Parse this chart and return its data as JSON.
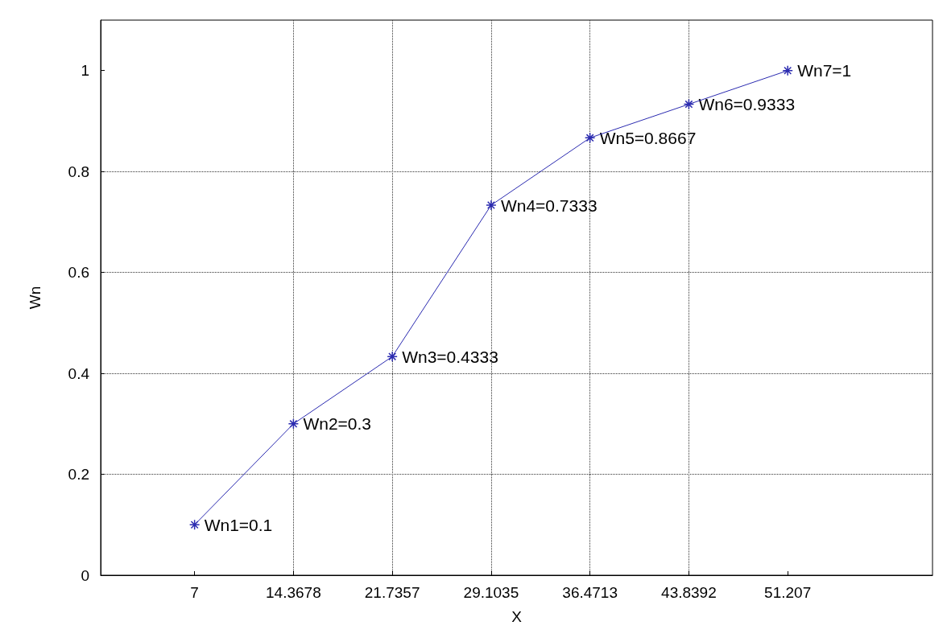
{
  "chart_data": {
    "type": "line",
    "xlabel": "X",
    "ylabel": "Wn",
    "x": [
      7,
      14.3678,
      21.7357,
      29.1035,
      36.4713,
      43.8392,
      51.207
    ],
    "series": [
      {
        "color": "#2b2bb0",
        "values": [
          0.1,
          0.3,
          0.4333,
          0.7333,
          0.8667,
          0.9333,
          1
        ]
      }
    ],
    "xlim": [
      0,
      62
    ],
    "xticks": [
      7,
      14.3678,
      21.7357,
      29.1035,
      36.4713,
      43.8392,
      51.207
    ],
    "ylim": [
      0,
      1.1
    ],
    "yticks": [
      0,
      0.2,
      0.4,
      0.6,
      0.8,
      1
    ],
    "grid": true,
    "marker": "cross",
    "line_style": "solid",
    "annotations": [
      {
        "text": "Wn1=0.1",
        "x": 7,
        "y": 0.1
      },
      {
        "text": "Wn2=0.3",
        "x": 14.3678,
        "y": 0.3
      },
      {
        "text": "Wn3=0.4333",
        "x": 21.7357,
        "y": 0.4333
      },
      {
        "text": "Wn4=0.7333",
        "x": 29.1035,
        "y": 0.7333
      },
      {
        "text": "Wn5=0.8667",
        "x": 36.4713,
        "y": 0.8667
      },
      {
        "text": "Wn6=0.9333",
        "x": 43.8392,
        "y": 0.9333
      },
      {
        "text": "Wn7=1",
        "x": 51.207,
        "y": 1
      }
    ]
  }
}
